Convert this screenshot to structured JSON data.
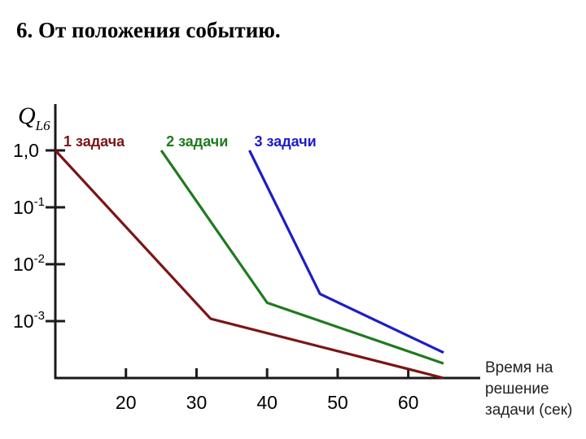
{
  "title": "6. От положения событию.",
  "chart_data": {
    "type": "line",
    "title": "6. От положения событию.",
    "ylabel": {
      "main": "Q",
      "sub": "L6"
    },
    "xlabel": [
      "Время на",
      "решение",
      "задачи (сек)"
    ],
    "x_ticks": [
      20,
      30,
      40,
      50,
      60
    ],
    "xlim": [
      10,
      68
    ],
    "y_scale": "log",
    "y_ticks": [
      {
        "value": 1.0,
        "base": "1,0",
        "sup": ""
      },
      {
        "value": 0.1,
        "base": "10",
        "sup": "-1"
      },
      {
        "value": 0.01,
        "base": "10",
        "sup": "-2"
      },
      {
        "value": 0.001,
        "base": "10",
        "sup": "-3"
      }
    ],
    "ylim": [
      0.0001,
      1.0
    ],
    "grid": false,
    "series": [
      {
        "name": "1 задача",
        "color": "#7b1515",
        "points": [
          [
            10,
            1.0
          ],
          [
            32,
            0.0011
          ],
          [
            65,
            0.0001
          ]
        ]
      },
      {
        "name": "2 задачи",
        "color": "#1f7a1f",
        "points": [
          [
            25,
            1.0
          ],
          [
            40,
            0.0021
          ],
          [
            65,
            0.00018
          ]
        ]
      },
      {
        "name": "3 задачи",
        "color": "#1c1ccc",
        "points": [
          [
            37.5,
            1.0
          ],
          [
            47.5,
            0.003
          ],
          [
            65,
            0.00028
          ]
        ]
      }
    ]
  }
}
